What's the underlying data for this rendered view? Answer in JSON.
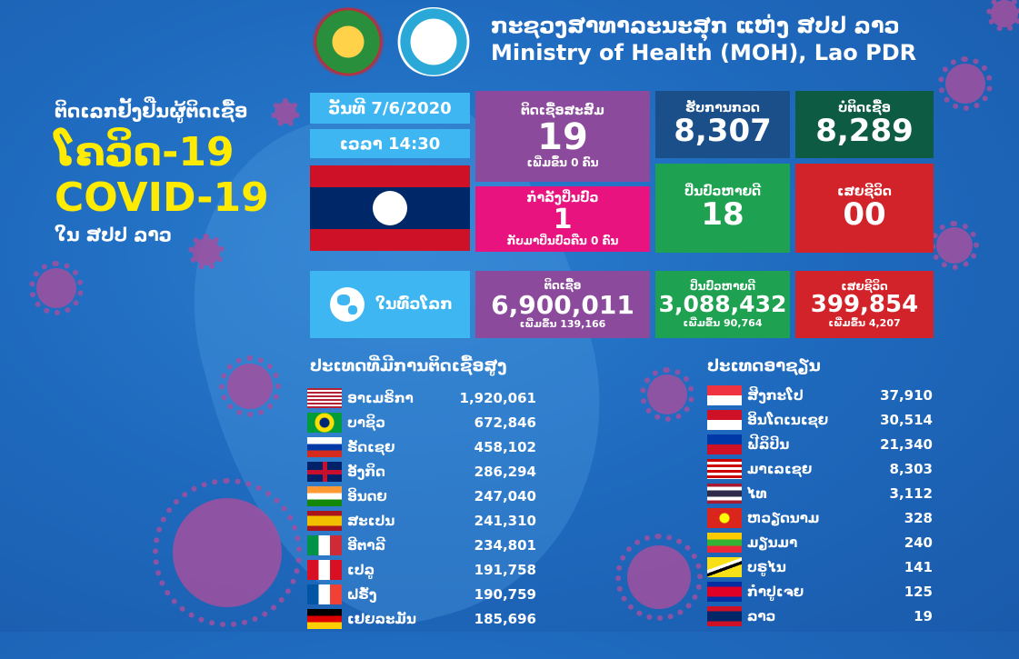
{
  "header": {
    "title_lao": "ກະຊວງສາທາລະນະສຸກ ແຫ່ງ ສປປ ລາວ",
    "title_en": "Ministry of Health (MOH), Lao PDR"
  },
  "left": {
    "subtitle": "ຕິດເລກຢັ້ງຢືນຜູ້ຕິດເຊື້ອ",
    "big_lao": "ໂຄວິດ-19",
    "big_en": "COVID-19",
    "location": "ໃນ ສປປ ລາວ"
  },
  "date_chip": "ວັນທີ 7/6/2020",
  "time_chip": "ເວລາ 14:30",
  "stats": {
    "cumulative": {
      "label": "ຕິດເຊື້ອສະສົມ",
      "value": "19",
      "note": "ເພີ່ມຂຶ້ນ 0 ຄົນ"
    },
    "treating": {
      "label": "ກຳລັງປິ່ນປົວ",
      "value": "1",
      "note": "ກັບມາປິ່ນປົວຄືນ 0 ຄົນ"
    },
    "tested": {
      "label": "ຮັບການກວດ",
      "value": "8,307"
    },
    "negative": {
      "label": "ບໍ່ຕິດເຊື້ອ",
      "value": "8,289"
    },
    "recovered": {
      "label": "ປິ່ນປົວຫາຍດີ",
      "value": "18"
    },
    "deaths": {
      "label": "ເສຍຊີວິດ",
      "value": "00"
    }
  },
  "world": {
    "label": "ໃນທົ່ວໂລກ",
    "infected": {
      "label": "ຕິດເຊື້ອ",
      "value": "6,900,011",
      "note": "ເພີ່ມຂຶ້ນ 139,166"
    },
    "recovered": {
      "label": "ປິ່ນປົວຫາຍດີ",
      "value": "3,088,432",
      "note": "ເພີ່ມຂຶ້ນ 90,764"
    },
    "deaths": {
      "label": "ເສຍຊີວິດ",
      "value": "399,854",
      "note": "ເພີ່ມຂຶ້ນ 4,207"
    }
  },
  "top_countries": {
    "title": "ປະເທດທີ່ມີການຕິດເຊື້ອສູງ",
    "rows": [
      {
        "name": "ອາເມຣິກາ",
        "value": "1,920,061",
        "flag": "us"
      },
      {
        "name": "ບາຊິວ",
        "value": "672,846",
        "flag": "br"
      },
      {
        "name": "ຣັດເຊຍ",
        "value": "458,102",
        "flag": "ru"
      },
      {
        "name": "ອັງກິດ",
        "value": "286,294",
        "flag": "gb"
      },
      {
        "name": "ອິນດຍ",
        "value": "247,040",
        "flag": "in"
      },
      {
        "name": "ສະເປນ",
        "value": "241,310",
        "flag": "es"
      },
      {
        "name": "ອີຕາລີ",
        "value": "234,801",
        "flag": "it"
      },
      {
        "name": "ເປລູ",
        "value": "191,758",
        "flag": "pe"
      },
      {
        "name": "ຝຣັ່ງ",
        "value": "190,759",
        "flag": "fr"
      },
      {
        "name": "ເຢຍລະມັນ",
        "value": "185,696",
        "flag": "de"
      }
    ]
  },
  "asean": {
    "title": "ປະເທດອາຊຽນ",
    "rows": [
      {
        "name": "ສິງກະໂປ",
        "value": "37,910",
        "flag": "sg"
      },
      {
        "name": "ອິນໂດເນເຊຍ",
        "value": "30,514",
        "flag": "id"
      },
      {
        "name": "ຟີລິປິນ",
        "value": "21,340",
        "flag": "ph"
      },
      {
        "name": "ມາເລເຊຍ",
        "value": "8,303",
        "flag": "my"
      },
      {
        "name": "ໄທ",
        "value": "3,112",
        "flag": "th"
      },
      {
        "name": "ຫວຽດນາມ",
        "value": "328",
        "flag": "vn"
      },
      {
        "name": "ມຽນມາ",
        "value": "240",
        "flag": "mm"
      },
      {
        "name": "ບຣູໄນ",
        "value": "141",
        "flag": "bn"
      },
      {
        "name": "ກຳປູເຈຍ",
        "value": "125",
        "flag": "kh"
      },
      {
        "name": "ລາວ",
        "value": "19",
        "flag": "la"
      }
    ]
  },
  "colors": {
    "purple": "#8c4a9c",
    "magenta": "#e8137f",
    "navy": "#1b4f8a",
    "dark_green": "#0e5b43",
    "green": "#1ea251",
    "red": "#d2232a",
    "chip_blue": "#3db6f2"
  }
}
